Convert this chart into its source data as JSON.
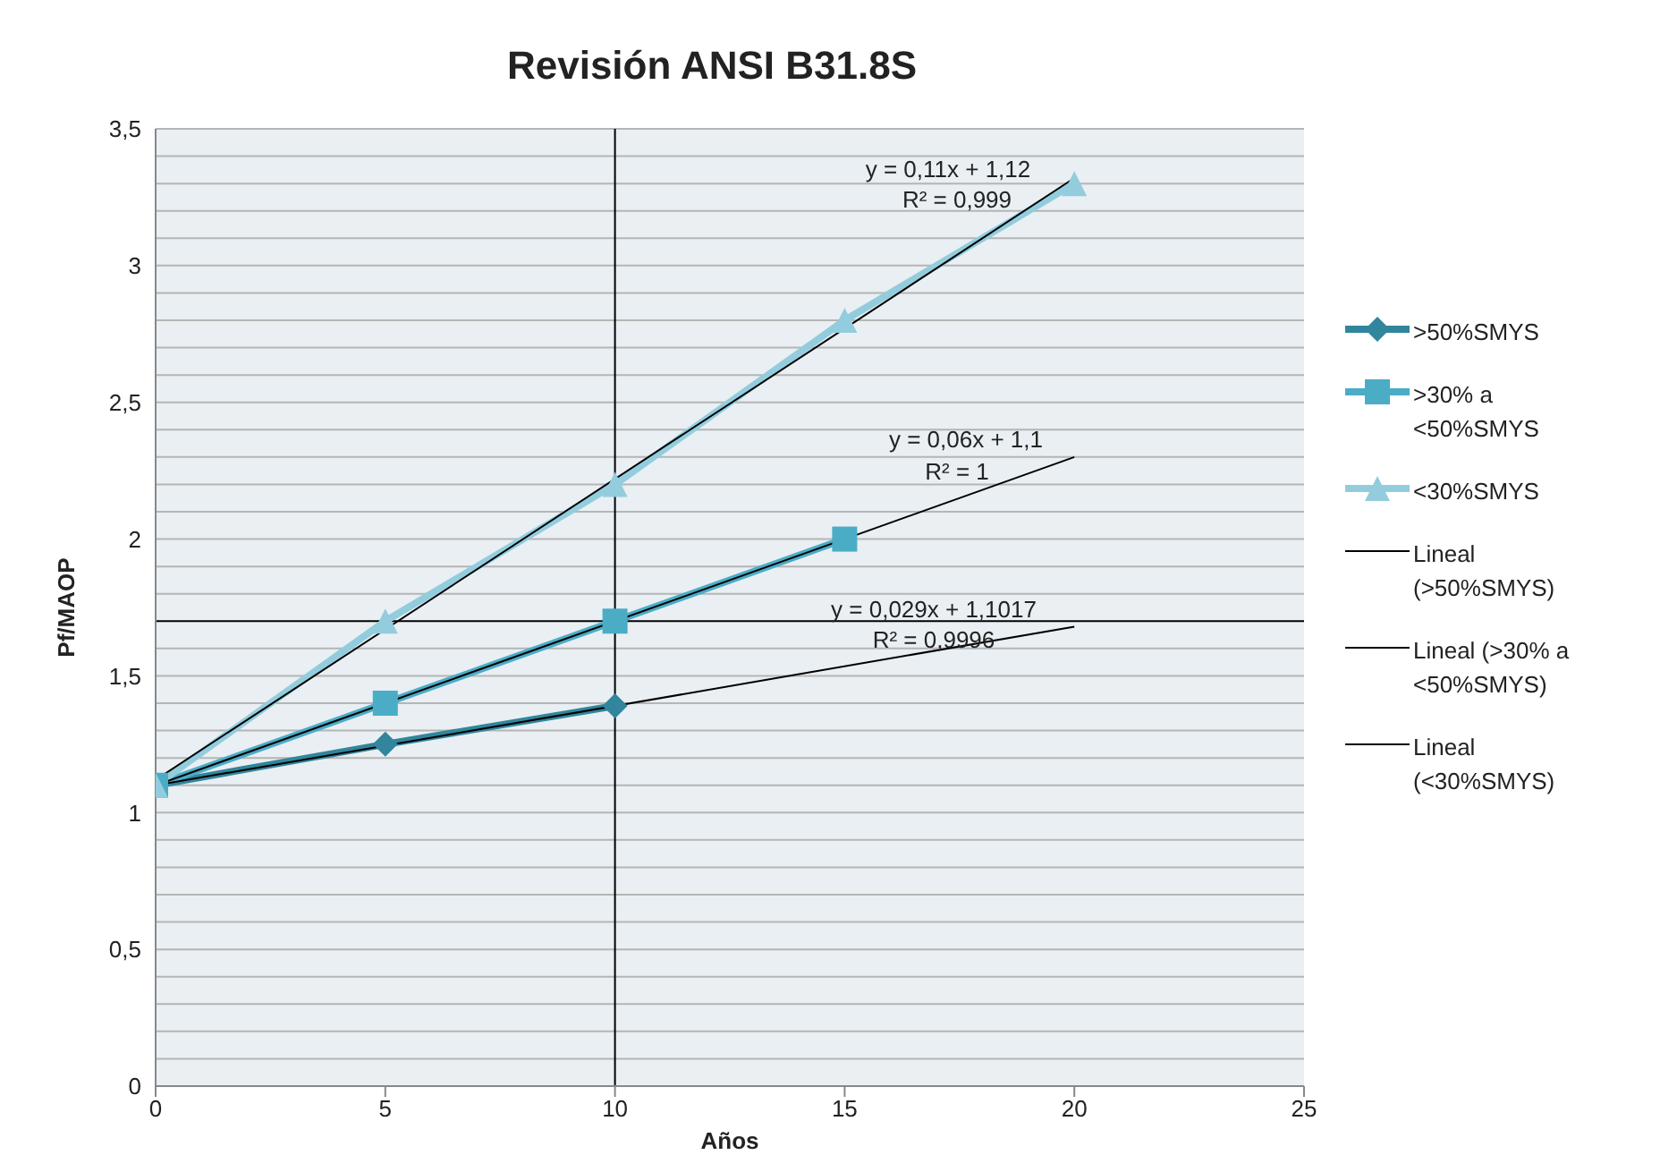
{
  "chart_data": {
    "type": "line",
    "title": "Revisión ANSI B31.8S",
    "xlabel": "Años",
    "ylabel": "Pf/MAOP",
    "xlim": [
      0,
      25
    ],
    "xticks": [
      0,
      5,
      10,
      15,
      20,
      25
    ],
    "ylim": [
      0,
      3.5
    ],
    "yticks": [
      0,
      {
        "value": 0.1,
        "label": null
      },
      {
        "value": 0.2,
        "label": null
      },
      {
        "value": 0.3,
        "label": null
      },
      {
        "value": 0.4,
        "label": null
      },
      {
        "value": 0.5,
        "label": "0,5"
      },
      {
        "value": 0.6,
        "label": null
      },
      {
        "value": 0.7,
        "label": null
      },
      {
        "value": 0.8,
        "label": null
      },
      {
        "value": 0.9,
        "label": null
      },
      1,
      {
        "value": 1.1,
        "label": null
      },
      {
        "value": 1.2,
        "label": null
      },
      {
        "value": 1.3,
        "label": null
      },
      {
        "value": 1.4,
        "label": null
      },
      {
        "value": 1.5,
        "label": "1,5"
      },
      {
        "value": 1.6,
        "label": null
      },
      {
        "value": 1.8,
        "label": null
      },
      {
        "value": 1.9,
        "label": null
      },
      2,
      {
        "value": 2.1,
        "label": null
      },
      {
        "value": 2.2,
        "label": null
      },
      {
        "value": 2.3,
        "label": null
      },
      {
        "value": 2.4,
        "label": null
      },
      {
        "value": 2.5,
        "label": "2,5"
      },
      {
        "value": 2.6,
        "label": null
      },
      {
        "value": 2.7,
        "label": null
      },
      {
        "value": 2.8,
        "label": null
      },
      {
        "value": 2.9,
        "label": null
      },
      3,
      {
        "value": 3.1,
        "label": null
      },
      {
        "value": 3.2,
        "label": null
      },
      {
        "value": 3.3,
        "label": null
      },
      {
        "value": 3.4,
        "label": null
      },
      {
        "value": 3.5,
        "label": "3,5"
      }
    ],
    "grid": "y",
    "legend": "right",
    "series": [
      {
        "name": ">50%SMYS",
        "color": "#31859c",
        "x": [
          0,
          5,
          10
        ],
        "values": [
          1.1,
          1.25,
          1.39
        ],
        "marker": "diamond"
      },
      {
        "name": ">30% a <50%SMYS",
        "color": "#4bacc6",
        "x": [
          0,
          5,
          10,
          15
        ],
        "values": [
          1.1,
          1.4,
          1.7,
          2.0
        ],
        "marker": "square"
      },
      {
        "name": "<30%SMYS",
        "color": "#93cddd",
        "x": [
          0,
          5,
          10,
          15,
          20
        ],
        "values": [
          1.1,
          1.7,
          2.2,
          2.8,
          3.3
        ],
        "marker": "triangle"
      },
      {
        "name": "Lineal (>50%SMYS)",
        "color": "#000000",
        "x": [
          0,
          20
        ],
        "values": [
          1.1,
          1.68
        ],
        "marker": "none"
      },
      {
        "name": "Lineal (>30% a <50%SMYS)",
        "color": "#000000",
        "x": [
          0,
          20
        ],
        "values": [
          1.1,
          2.3
        ],
        "marker": "none"
      },
      {
        "name": "Lineal (<30%SMYS)",
        "color": "#000000",
        "x": [
          0,
          20
        ],
        "values": [
          1.12,
          3.32
        ],
        "marker": "none"
      }
    ],
    "ref_lines": [
      {
        "axis": "x",
        "value": 10,
        "color": "#000000"
      },
      {
        "axis": "y",
        "value": 1.7,
        "color": "#000000"
      }
    ],
    "annotations": [
      "y = 0,11x + 1,12",
      "R² = 0,999",
      "y = 0,06x + 1,1",
      "R² = 1",
      "y = 0,029x + 1,1017",
      "R² = 0,9996"
    ]
  }
}
